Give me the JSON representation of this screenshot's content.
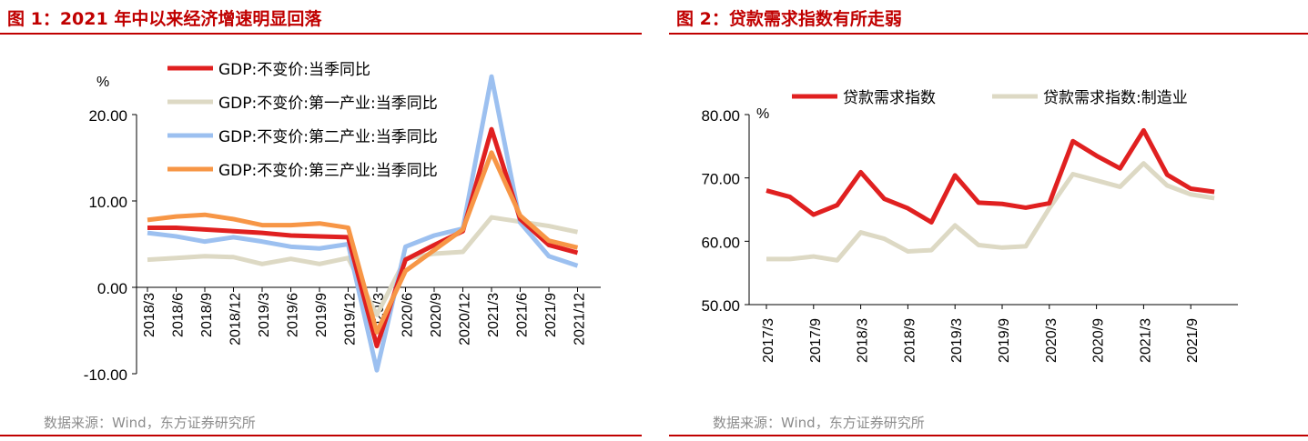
{
  "charts": [
    {
      "title": "图 1：2021 年中以来经济增速明显回落",
      "source": "数据来源：Wind，东方证券研究所",
      "chart_data": {
        "type": "line",
        "unit_label": "%",
        "ylim": [
          -10,
          20
        ],
        "yticks": [
          "20.00",
          "10.00",
          "0.00",
          "-10.00"
        ],
        "ytick_values": [
          20,
          10,
          0,
          -10
        ],
        "grid": false,
        "legend_position": "top-left",
        "x_tick_labels": [
          "2018/3",
          "2018/6",
          "2018/9",
          "2018/12",
          "2019/3",
          "2019/6",
          "2019/9",
          "2019/12",
          "2020/3",
          "2020/6",
          "2020/9",
          "2020/12",
          "2021/3",
          "2021/6",
          "2021/9",
          "2021/12"
        ],
        "series": [
          {
            "name": "GDP:不变价:当季同比",
            "color": "#e02020",
            "values": [
              6.9,
              6.9,
              6.7,
              6.5,
              6.3,
              6.0,
              5.9,
              5.8,
              -6.8,
              3.2,
              4.9,
              6.5,
              18.3,
              7.9,
              4.9,
              4.0
            ]
          },
          {
            "name": "GDP:不变价:第一产业:当季同比",
            "color": "#ddd9c4",
            "values": [
              3.2,
              3.4,
              3.6,
              3.5,
              2.7,
              3.3,
              2.7,
              3.4,
              -3.2,
              3.3,
              3.9,
              4.1,
              8.1,
              7.6,
              7.1,
              6.4
            ]
          },
          {
            "name": "GDP:不变价:第二产业:当季同比",
            "color": "#9cc0f0",
            "values": [
              6.3,
              5.9,
              5.3,
              5.8,
              5.3,
              4.7,
              4.5,
              5.0,
              -9.6,
              4.7,
              6.0,
              6.8,
              24.4,
              7.5,
              3.6,
              2.5
            ]
          },
          {
            "name": "GDP:不变价:第三产业:当季同比",
            "color": "#f79646",
            "values": [
              7.8,
              8.2,
              8.4,
              7.9,
              7.2,
              7.2,
              7.4,
              6.9,
              -5.2,
              1.9,
              4.3,
              6.7,
              15.6,
              8.3,
              5.4,
              4.6
            ]
          }
        ]
      }
    },
    {
      "title": "图 2：贷款需求指数有所走弱",
      "source": "数据来源：Wind，东方证券研究所",
      "chart_data": {
        "type": "line",
        "unit_label": "%",
        "ylim": [
          50,
          80
        ],
        "yticks": [
          "80.00",
          "70.00",
          "60.00",
          "50.00"
        ],
        "ytick_values": [
          80,
          70,
          60,
          50
        ],
        "grid": false,
        "legend_position": "top",
        "x_tick_labels": [
          "2017/3",
          "2017/9",
          "2018/3",
          "2018/9",
          "2019/3",
          "2019/9",
          "2020/3",
          "2020/9",
          "2021/3",
          "2021/9"
        ],
        "points_per_tick": 2,
        "series": [
          {
            "name": "贷款需求指数",
            "color": "#e02020",
            "values": [
              68.0,
              67.0,
              64.2,
              65.7,
              70.9,
              66.7,
              65.2,
              63.0,
              70.4,
              66.1,
              65.9,
              65.3,
              66.0,
              75.8,
              73.5,
              71.5,
              77.5,
              70.5,
              68.3,
              67.8
            ]
          },
          {
            "name": "贷款需求指数:制造业",
            "color": "#ddd9c4",
            "values": [
              57.2,
              57.2,
              57.6,
              57.0,
              61.4,
              60.4,
              58.4,
              58.6,
              62.5,
              59.4,
              59.0,
              59.2,
              65.2,
              70.6,
              69.6,
              68.6,
              72.3,
              68.8,
              67.4,
              66.8
            ]
          }
        ]
      }
    }
  ]
}
